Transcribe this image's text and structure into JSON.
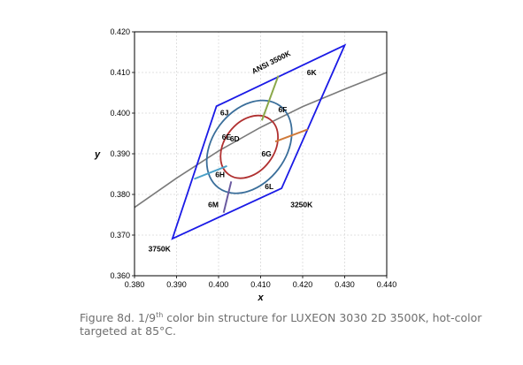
{
  "chart_data": {
    "type": "scatter",
    "xlabel": "x",
    "ylabel": "y",
    "xlim": [
      0.38,
      0.44
    ],
    "ylim": [
      0.36,
      0.42
    ],
    "x_ticks": [
      0.38,
      0.39,
      0.4,
      0.41,
      0.42,
      0.43,
      0.44
    ],
    "y_ticks": [
      0.36,
      0.37,
      0.38,
      0.39,
      0.4,
      0.41,
      0.42
    ],
    "x_tick_labels": [
      "0.380",
      "0.390",
      "0.400",
      "0.410",
      "0.420",
      "0.430",
      "0.440"
    ],
    "y_tick_labels": [
      "0.360",
      "0.370",
      "0.380",
      "0.390",
      "0.400",
      "0.410",
      "0.420"
    ],
    "grid": true,
    "colors": {
      "bin_outline": "#1a1ae6",
      "planckian": "#7a7a7a",
      "ellipse_outer": "#3a6e9a",
      "ellipse_inner": "#b03030",
      "sep_upper": "#8aa84a",
      "sep_right": "#d07a3a",
      "sep_left": "#4aa0c8",
      "sep_lower": "#6a5aa0"
    },
    "series": [
      {
        "type": "polygon",
        "points": [
          [
            0.389,
            0.3691
          ],
          [
            0.3995,
            0.4017
          ],
          [
            0.43,
            0.4167
          ],
          [
            0.415,
            0.3815
          ]
        ]
      },
      {
        "type": "line",
        "points": [
          [
            0.38,
            0.3768
          ],
          [
            0.39,
            0.384
          ],
          [
            0.4,
            0.3907
          ],
          [
            0.41,
            0.3965
          ],
          [
            0.42,
            0.4016
          ],
          [
            0.43,
            0.4059
          ],
          [
            0.44,
            0.41
          ]
        ]
      },
      {
        "type": "ellipse",
        "center": [
          0.4073,
          0.3917
        ],
        "rx": 0.0082,
        "ry": 0.0061,
        "rotation_deg": 53
      },
      {
        "type": "ellipse",
        "center": [
          0.4073,
          0.3917
        ],
        "rx": 0.0122,
        "ry": 0.009,
        "rotation_deg": 53
      },
      {
        "type": "segments",
        "segments": [
          {
            "key": "sep_upper",
            "points": [
              [
                0.4103,
                0.3982
              ],
              [
                0.4142,
                0.4092
              ]
            ]
          },
          {
            "key": "sep_right",
            "points": [
              [
                0.4135,
                0.393
              ],
              [
                0.4212,
                0.396
              ]
            ]
          },
          {
            "key": "sep_left",
            "points": [
              [
                0.3942,
                0.3838
              ],
              [
                0.402,
                0.387
              ]
            ]
          },
          {
            "key": "sep_lower",
            "points": [
              [
                0.403,
                0.3832
              ],
              [
                0.4012,
                0.3755
              ]
            ]
          }
        ]
      }
    ],
    "annotations": [
      {
        "text": "ANSI 3500K",
        "x": 0.4083,
        "y": 0.4096,
        "rotate": -27
      },
      {
        "text": "6K",
        "x": 0.421,
        "y": 0.4093
      },
      {
        "text": "6J",
        "x": 0.4004,
        "y": 0.3995
      },
      {
        "text": "6F",
        "x": 0.4142,
        "y": 0.4002
      },
      {
        "text": "6E",
        "x": 0.4008,
        "y": 0.3935
      },
      {
        "text": "6D",
        "x": 0.4027,
        "y": 0.393
      },
      {
        "text": "6G",
        "x": 0.4102,
        "y": 0.3893
      },
      {
        "text": "6H",
        "x": 0.3992,
        "y": 0.3842
      },
      {
        "text": "6L",
        "x": 0.411,
        "y": 0.3813
      },
      {
        "text": "6M",
        "x": 0.3975,
        "y": 0.3768
      },
      {
        "text": "3250K",
        "x": 0.4171,
        "y": 0.3768
      },
      {
        "text": "3750K",
        "x": 0.3833,
        "y": 0.366
      }
    ]
  },
  "caption": {
    "prefix": "Figure 8d. 1/9",
    "sup": "th",
    "suffix": " color bin structure for LUXEON 3030 2D 3500K, hot-color targeted at 85°C."
  }
}
